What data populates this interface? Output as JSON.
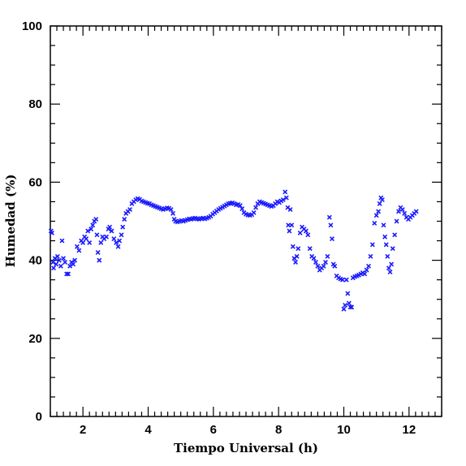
{
  "chart_data": {
    "type": "scatter",
    "xlabel": "Tiempo Universal (h)",
    "ylabel": "Humedad (%)",
    "xlim": [
      1,
      13
    ],
    "ylim": [
      0,
      100
    ],
    "x_ticks": [
      2,
      4,
      6,
      8,
      10,
      12
    ],
    "y_ticks": [
      0,
      20,
      40,
      60,
      80,
      100
    ],
    "x_minor_step": 0.2,
    "y_minor_step": 5,
    "marker": "x",
    "marker_color": "#1a1aff",
    "grid": false,
    "points": [
      [
        1.02,
        47.5
      ],
      [
        1.05,
        47.0
      ],
      [
        1.08,
        39.5
      ],
      [
        1.1,
        38.0
      ],
      [
        1.14,
        40.5
      ],
      [
        1.18,
        39.0
      ],
      [
        1.22,
        41.0
      ],
      [
        1.27,
        40.0
      ],
      [
        1.32,
        38.5
      ],
      [
        1.36,
        45.0
      ],
      [
        1.4,
        40.5
      ],
      [
        1.45,
        39.5
      ],
      [
        1.5,
        36.5
      ],
      [
        1.55,
        36.5
      ],
      [
        1.6,
        38.5
      ],
      [
        1.65,
        39.5
      ],
      [
        1.7,
        39.0
      ],
      [
        1.75,
        40.0
      ],
      [
        1.82,
        43.5
      ],
      [
        1.88,
        42.5
      ],
      [
        1.95,
        45.0
      ],
      [
        2.0,
        44.5
      ],
      [
        2.05,
        46.0
      ],
      [
        2.1,
        45.5
      ],
      [
        2.15,
        47.5
      ],
      [
        2.2,
        44.5
      ],
      [
        2.25,
        48.0
      ],
      [
        2.3,
        49.0
      ],
      [
        2.35,
        50.0
      ],
      [
        2.4,
        50.5
      ],
      [
        2.43,
        46.5
      ],
      [
        2.46,
        42.0
      ],
      [
        2.5,
        40.0
      ],
      [
        2.55,
        44.5
      ],
      [
        2.6,
        46.0
      ],
      [
        2.65,
        45.5
      ],
      [
        2.72,
        46.0
      ],
      [
        2.78,
        48.0
      ],
      [
        2.82,
        48.5
      ],
      [
        2.88,
        47.5
      ],
      [
        2.95,
        45.5
      ],
      [
        3.02,
        44.5
      ],
      [
        3.08,
        43.5
      ],
      [
        3.12,
        45.0
      ],
      [
        3.18,
        46.5
      ],
      [
        3.22,
        48.5
      ],
      [
        3.27,
        50.5
      ],
      [
        3.32,
        52.0
      ],
      [
        3.38,
        52.5
      ],
      [
        3.44,
        53.0
      ],
      [
        3.5,
        54.5
      ],
      [
        3.56,
        55.0
      ],
      [
        3.62,
        55.5
      ],
      [
        3.68,
        55.8
      ],
      [
        3.74,
        55.6
      ],
      [
        3.8,
        55.2
      ],
      [
        3.86,
        55.0
      ],
      [
        3.92,
        54.8
      ],
      [
        3.98,
        54.6
      ],
      [
        4.04,
        54.5
      ],
      [
        4.1,
        54.2
      ],
      [
        4.16,
        54.0
      ],
      [
        4.22,
        53.8
      ],
      [
        4.28,
        53.6
      ],
      [
        4.34,
        53.4
      ],
      [
        4.4,
        53.2
      ],
      [
        4.46,
        53.0
      ],
      [
        4.52,
        53.2
      ],
      [
        4.58,
        53.4
      ],
      [
        4.64,
        53.3
      ],
      [
        4.7,
        53.0
      ],
      [
        4.76,
        52.0
      ],
      [
        4.8,
        50.5
      ],
      [
        4.84,
        50.0
      ],
      [
        4.9,
        49.8
      ],
      [
        4.96,
        50.0
      ],
      [
        5.02,
        50.2
      ],
      [
        5.08,
        50.0
      ],
      [
        5.14,
        50.2
      ],
      [
        5.2,
        50.4
      ],
      [
        5.26,
        50.6
      ],
      [
        5.32,
        50.5
      ],
      [
        5.38,
        50.7
      ],
      [
        5.44,
        50.8
      ],
      [
        5.5,
        50.6
      ],
      [
        5.56,
        50.5
      ],
      [
        5.62,
        50.7
      ],
      [
        5.68,
        50.8
      ],
      [
        5.74,
        50.6
      ],
      [
        5.8,
        50.8
      ],
      [
        5.86,
        51.0
      ],
      [
        5.92,
        51.3
      ],
      [
        5.98,
        51.8
      ],
      [
        6.04,
        52.2
      ],
      [
        6.1,
        52.6
      ],
      [
        6.16,
        53.0
      ],
      [
        6.22,
        53.3
      ],
      [
        6.28,
        53.6
      ],
      [
        6.34,
        53.9
      ],
      [
        6.4,
        54.2
      ],
      [
        6.46,
        54.5
      ],
      [
        6.52,
        54.6
      ],
      [
        6.58,
        54.7
      ],
      [
        6.64,
        54.5
      ],
      [
        6.7,
        54.2
      ],
      [
        6.76,
        54.3
      ],
      [
        6.82,
        54.0
      ],
      [
        6.88,
        53.2
      ],
      [
        6.94,
        52.2
      ],
      [
        7.0,
        51.8
      ],
      [
        7.06,
        51.6
      ],
      [
        7.12,
        51.5
      ],
      [
        7.18,
        51.7
      ],
      [
        7.24,
        52.2
      ],
      [
        7.3,
        53.5
      ],
      [
        7.36,
        54.5
      ],
      [
        7.42,
        55.0
      ],
      [
        7.48,
        54.8
      ],
      [
        7.54,
        54.6
      ],
      [
        7.6,
        54.4
      ],
      [
        7.66,
        54.2
      ],
      [
        7.72,
        54.0
      ],
      [
        7.78,
        53.8
      ],
      [
        7.84,
        54.0
      ],
      [
        7.9,
        54.5
      ],
      [
        7.96,
        55.0
      ],
      [
        8.02,
        54.8
      ],
      [
        8.08,
        55.2
      ],
      [
        8.14,
        55.5
      ],
      [
        8.2,
        57.5
      ],
      [
        8.24,
        56.0
      ],
      [
        8.28,
        53.5
      ],
      [
        8.3,
        49.0
      ],
      [
        8.33,
        47.5
      ],
      [
        8.36,
        53.0
      ],
      [
        8.4,
        49.0
      ],
      [
        8.44,
        43.5
      ],
      [
        8.48,
        40.5
      ],
      [
        8.52,
        39.5
      ],
      [
        8.56,
        41.0
      ],
      [
        8.6,
        43.0
      ],
      [
        8.66,
        47.0
      ],
      [
        8.72,
        48.5
      ],
      [
        8.78,
        48.0
      ],
      [
        8.84,
        47.5
      ],
      [
        8.9,
        46.5
      ],
      [
        8.96,
        43.0
      ],
      [
        9.02,
        41.0
      ],
      [
        9.08,
        40.5
      ],
      [
        9.14,
        39.5
      ],
      [
        9.2,
        38.5
      ],
      [
        9.26,
        37.5
      ],
      [
        9.32,
        38.0
      ],
      [
        9.38,
        38.5
      ],
      [
        9.44,
        39.5
      ],
      [
        9.5,
        41.0
      ],
      [
        9.56,
        51.0
      ],
      [
        9.6,
        49.0
      ],
      [
        9.64,
        45.5
      ],
      [
        9.68,
        39.0
      ],
      [
        9.72,
        38.5
      ],
      [
        9.78,
        36.0
      ],
      [
        9.84,
        35.5
      ],
      [
        9.9,
        35.2
      ],
      [
        9.96,
        35.0
      ],
      [
        10.0,
        27.5
      ],
      [
        10.04,
        28.5
      ],
      [
        10.08,
        35.0
      ],
      [
        10.12,
        31.5
      ],
      [
        10.16,
        29.0
      ],
      [
        10.2,
        28.0
      ],
      [
        10.24,
        28.0
      ],
      [
        10.28,
        35.5
      ],
      [
        10.34,
        35.8
      ],
      [
        10.4,
        36.0
      ],
      [
        10.46,
        36.2
      ],
      [
        10.52,
        36.5
      ],
      [
        10.58,
        36.8
      ],
      [
        10.64,
        36.5
      ],
      [
        10.7,
        37.5
      ],
      [
        10.76,
        38.5
      ],
      [
        10.82,
        41.0
      ],
      [
        10.88,
        44.0
      ],
      [
        10.94,
        49.5
      ],
      [
        11.0,
        51.5
      ],
      [
        11.06,
        52.5
      ],
      [
        11.1,
        54.5
      ],
      [
        11.14,
        56.0
      ],
      [
        11.18,
        55.5
      ],
      [
        11.22,
        49.0
      ],
      [
        11.26,
        46.0
      ],
      [
        11.3,
        44.0
      ],
      [
        11.34,
        41.0
      ],
      [
        11.38,
        38.0
      ],
      [
        11.42,
        37.0
      ],
      [
        11.46,
        39.0
      ],
      [
        11.5,
        43.0
      ],
      [
        11.56,
        46.5
      ],
      [
        11.62,
        50.0
      ],
      [
        11.68,
        52.5
      ],
      [
        11.74,
        53.5
      ],
      [
        11.8,
        53.0
      ],
      [
        11.86,
        52.0
      ],
      [
        11.92,
        51.0
      ],
      [
        11.98,
        50.5
      ],
      [
        12.04,
        51.0
      ],
      [
        12.1,
        51.5
      ],
      [
        12.16,
        52.0
      ],
      [
        12.22,
        52.5
      ]
    ]
  }
}
